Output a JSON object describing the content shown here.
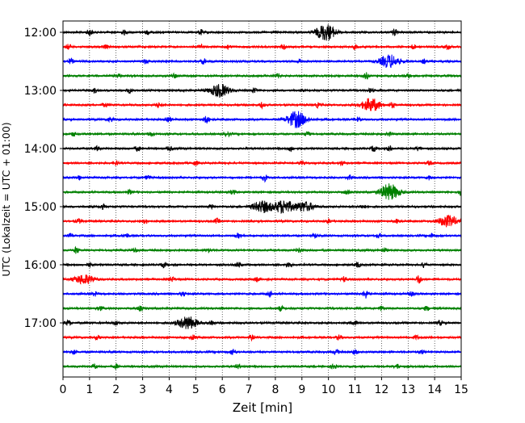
{
  "chart_data": {
    "type": "line",
    "title": "",
    "xlabel": "Zeit  [min]",
    "ylabel": "UTC (Lokalzeit = UTC + 01:00)",
    "xlim": [
      0,
      15
    ],
    "x_ticks": [
      "0",
      "1",
      "2",
      "3",
      "4",
      "5",
      "6",
      "7",
      "8",
      "9",
      "10",
      "11",
      "12",
      "13",
      "14",
      "15"
    ],
    "y_tick_labels": [
      "12:00",
      "13:00",
      "14:00",
      "15:00",
      "16:00",
      "17:00"
    ],
    "y_tick_row_index": [
      0,
      4,
      8,
      12,
      16,
      20
    ],
    "grid": {
      "vertical": true,
      "style": "dotted"
    },
    "color_cycle": [
      "#000000",
      "#ff0000",
      "#0000ff",
      "#008000"
    ],
    "series": [
      {
        "start_utc": "12:00",
        "color": "#000000",
        "events": [
          {
            "t": 1.0,
            "amp": 4
          },
          {
            "t": 2.3,
            "amp": 2.5
          },
          {
            "t": 3.2,
            "amp": 2.5
          },
          {
            "t": 5.2,
            "amp": 3
          },
          {
            "t": 9.9,
            "amp": 10
          },
          {
            "t": 12.5,
            "amp": 4
          }
        ]
      },
      {
        "start_utc": "12:15",
        "color": "#ff0000",
        "events": [
          {
            "t": 0.2,
            "amp": 3
          },
          {
            "t": 1.6,
            "amp": 2.5
          },
          {
            "t": 5.2,
            "amp": 3
          },
          {
            "t": 6.2,
            "amp": 3
          },
          {
            "t": 8.3,
            "amp": 2.5
          },
          {
            "t": 11.0,
            "amp": 2.5
          },
          {
            "t": 13.2,
            "amp": 2.5
          },
          {
            "t": 14.5,
            "amp": 3
          }
        ]
      },
      {
        "start_utc": "12:30",
        "color": "#0000ff",
        "events": [
          {
            "t": 0.3,
            "amp": 3
          },
          {
            "t": 3.1,
            "amp": 2.5
          },
          {
            "t": 5.3,
            "amp": 3
          },
          {
            "t": 8.9,
            "amp": 2.5
          },
          {
            "t": 12.3,
            "amp": 8
          },
          {
            "t": 13.6,
            "amp": 2.5
          }
        ]
      },
      {
        "start_utc": "12:45",
        "color": "#008000",
        "events": [
          {
            "t": 2.1,
            "amp": 2.5
          },
          {
            "t": 4.2,
            "amp": 2.5
          },
          {
            "t": 8.1,
            "amp": 2.5
          },
          {
            "t": 11.4,
            "amp": 4
          },
          {
            "t": 13.0,
            "amp": 2.5
          }
        ]
      },
      {
        "start_utc": "13:00",
        "color": "#000000",
        "events": [
          {
            "t": 1.2,
            "amp": 2.5
          },
          {
            "t": 2.5,
            "amp": 2.5
          },
          {
            "t": 5.9,
            "amp": 8
          },
          {
            "t": 7.2,
            "amp": 3
          },
          {
            "t": 11.6,
            "amp": 2.5
          }
        ]
      },
      {
        "start_utc": "13:15",
        "color": "#ff0000",
        "events": [
          {
            "t": 1.6,
            "amp": 2.5
          },
          {
            "t": 3.6,
            "amp": 2.5
          },
          {
            "t": 7.5,
            "amp": 3
          },
          {
            "t": 9.6,
            "amp": 2.5
          },
          {
            "t": 11.6,
            "amp": 8
          },
          {
            "t": 12.4,
            "amp": 3
          }
        ]
      },
      {
        "start_utc": "13:30",
        "color": "#0000ff",
        "events": [
          {
            "t": 1.8,
            "amp": 2.5
          },
          {
            "t": 4.0,
            "amp": 3
          },
          {
            "t": 5.4,
            "amp": 4
          },
          {
            "t": 8.8,
            "amp": 10
          },
          {
            "t": 11.1,
            "amp": 2.5
          }
        ]
      },
      {
        "start_utc": "13:45",
        "color": "#008000",
        "events": [
          {
            "t": 0.4,
            "amp": 2.5
          },
          {
            "t": 3.3,
            "amp": 2.5
          },
          {
            "t": 6.2,
            "amp": 2.5
          },
          {
            "t": 9.2,
            "amp": 2.5
          },
          {
            "t": 12.3,
            "amp": 2.5
          }
        ]
      },
      {
        "start_utc": "14:00",
        "color": "#000000",
        "events": [
          {
            "t": 1.3,
            "amp": 2.5
          },
          {
            "t": 2.8,
            "amp": 3
          },
          {
            "t": 4.0,
            "amp": 2.5
          },
          {
            "t": 8.6,
            "amp": 3
          },
          {
            "t": 11.7,
            "amp": 3
          },
          {
            "t": 12.3,
            "amp": 3
          },
          {
            "t": 13.4,
            "amp": 2.5
          }
        ]
      },
      {
        "start_utc": "14:15",
        "color": "#ff0000",
        "events": [
          {
            "t": 2.0,
            "amp": 2.5
          },
          {
            "t": 5.0,
            "amp": 2.5
          },
          {
            "t": 9.0,
            "amp": 2.5
          },
          {
            "t": 10.5,
            "amp": 2.5
          },
          {
            "t": 13.8,
            "amp": 2.5
          }
        ]
      },
      {
        "start_utc": "14:30",
        "color": "#0000ff",
        "events": [
          {
            "t": 0.6,
            "amp": 2.5
          },
          {
            "t": 3.2,
            "amp": 2.5
          },
          {
            "t": 7.6,
            "amp": 4
          },
          {
            "t": 10.8,
            "amp": 2.5
          },
          {
            "t": 13.8,
            "amp": 2.5
          }
        ]
      },
      {
        "start_utc": "14:45",
        "color": "#008000",
        "events": [
          {
            "t": 2.5,
            "amp": 2.5
          },
          {
            "t": 6.4,
            "amp": 2.5
          },
          {
            "t": 10.7,
            "amp": 2.5
          },
          {
            "t": 12.3,
            "amp": 10
          },
          {
            "t": 15.0,
            "amp": 4
          }
        ]
      },
      {
        "start_utc": "15:00",
        "color": "#000000",
        "events": [
          {
            "t": 1.5,
            "amp": 2.5
          },
          {
            "t": 5.6,
            "amp": 2.5
          },
          {
            "t": 7.5,
            "amp": 7
          },
          {
            "t": 8.3,
            "amp": 8
          },
          {
            "t": 9.1,
            "amp": 6
          },
          {
            "t": 11.3,
            "amp": 2.5
          }
        ]
      },
      {
        "start_utc": "15:15",
        "color": "#ff0000",
        "events": [
          {
            "t": 0.6,
            "amp": 2.5
          },
          {
            "t": 3.1,
            "amp": 2.5
          },
          {
            "t": 5.8,
            "amp": 3
          },
          {
            "t": 10.0,
            "amp": 2.5
          },
          {
            "t": 12.6,
            "amp": 2.5
          },
          {
            "t": 14.5,
            "amp": 7
          }
        ]
      },
      {
        "start_utc": "15:30",
        "color": "#0000ff",
        "events": [
          {
            "t": 0.3,
            "amp": 2.5
          },
          {
            "t": 2.4,
            "amp": 2.5
          },
          {
            "t": 6.6,
            "amp": 2.5
          },
          {
            "t": 9.5,
            "amp": 2.5
          },
          {
            "t": 11.9,
            "amp": 2.5
          },
          {
            "t": 13.9,
            "amp": 2.5
          }
        ]
      },
      {
        "start_utc": "15:45",
        "color": "#008000",
        "events": [
          {
            "t": 0.5,
            "amp": 4
          },
          {
            "t": 2.7,
            "amp": 2.5
          },
          {
            "t": 5.5,
            "amp": 2.5
          },
          {
            "t": 8.9,
            "amp": 2.5
          },
          {
            "t": 12.1,
            "amp": 2.5
          }
        ]
      },
      {
        "start_utc": "16:00",
        "color": "#000000",
        "events": [
          {
            "t": 1.0,
            "amp": 2.5
          },
          {
            "t": 3.8,
            "amp": 2.5
          },
          {
            "t": 6.6,
            "amp": 3
          },
          {
            "t": 8.5,
            "amp": 3
          },
          {
            "t": 11.1,
            "amp": 3
          },
          {
            "t": 13.6,
            "amp": 3
          }
        ]
      },
      {
        "start_utc": "16:15",
        "color": "#ff0000",
        "events": [
          {
            "t": 0.8,
            "amp": 6
          },
          {
            "t": 4.1,
            "amp": 3
          },
          {
            "t": 7.3,
            "amp": 2.5
          },
          {
            "t": 10.6,
            "amp": 3
          },
          {
            "t": 13.4,
            "amp": 5
          }
        ]
      },
      {
        "start_utc": "16:30",
        "color": "#0000ff",
        "events": [
          {
            "t": 1.2,
            "amp": 2.5
          },
          {
            "t": 4.5,
            "amp": 2.5
          },
          {
            "t": 7.8,
            "amp": 2.5
          },
          {
            "t": 11.4,
            "amp": 5
          },
          {
            "t": 13.1,
            "amp": 2.5
          }
        ]
      },
      {
        "start_utc": "16:45",
        "color": "#008000",
        "events": [
          {
            "t": 1.4,
            "amp": 2.5
          },
          {
            "t": 2.9,
            "amp": 2.5
          },
          {
            "t": 8.2,
            "amp": 3
          },
          {
            "t": 12.0,
            "amp": 2.5
          },
          {
            "t": 13.7,
            "amp": 2.5
          }
        ]
      },
      {
        "start_utc": "17:00",
        "color": "#000000",
        "events": [
          {
            "t": 0.2,
            "amp": 3
          },
          {
            "t": 2.0,
            "amp": 2.5
          },
          {
            "t": 4.7,
            "amp": 8
          },
          {
            "t": 5.6,
            "amp": 3
          },
          {
            "t": 11.0,
            "amp": 2.5
          },
          {
            "t": 14.2,
            "amp": 3
          }
        ]
      },
      {
        "start_utc": "17:15",
        "color": "#ff0000",
        "events": [
          {
            "t": 1.3,
            "amp": 2.5
          },
          {
            "t": 4.9,
            "amp": 3
          },
          {
            "t": 7.1,
            "amp": 2.5
          },
          {
            "t": 10.4,
            "amp": 2.5
          },
          {
            "t": 13.3,
            "amp": 2.5
          }
        ]
      },
      {
        "start_utc": "17:30",
        "color": "#0000ff",
        "events": [
          {
            "t": 0.4,
            "amp": 2.5
          },
          {
            "t": 6.4,
            "amp": 4
          },
          {
            "t": 10.3,
            "amp": 3
          },
          {
            "t": 11.0,
            "amp": 3
          },
          {
            "t": 13.5,
            "amp": 2.5
          }
        ]
      },
      {
        "start_utc": "17:45",
        "color": "#008000",
        "events": [
          {
            "t": 1.2,
            "amp": 2.5
          },
          {
            "t": 2.0,
            "amp": 2.5
          },
          {
            "t": 6.6,
            "amp": 2.5
          },
          {
            "t": 10.2,
            "amp": 2.5
          },
          {
            "t": 12.6,
            "amp": 2.5
          }
        ]
      }
    ]
  }
}
